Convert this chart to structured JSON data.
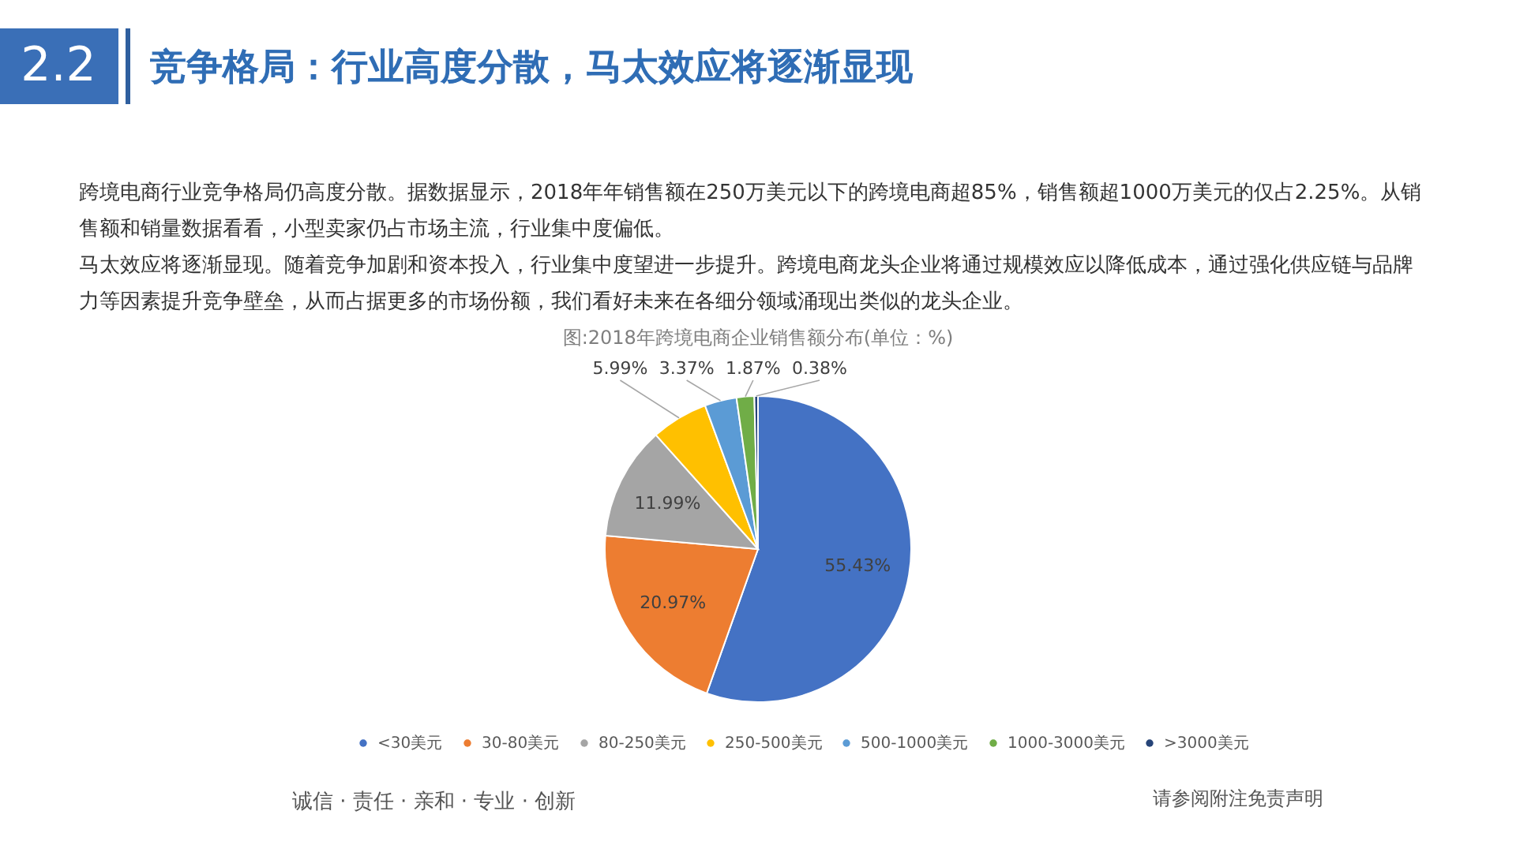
{
  "chart_data": {
    "type": "pie",
    "title": "图:2018年跨境电商企业销售额分布(单位：%)",
    "categories": [
      "<30美元",
      "30-80美元",
      "80-250美元",
      "250-500美元",
      "500-1000美元",
      "1000-3000美元",
      ">3000美元"
    ],
    "values": [
      55.43,
      20.97,
      11.99,
      5.99,
      3.37,
      1.87,
      0.38
    ],
    "colors": [
      "#4472c4",
      "#ed7d31",
      "#a5a5a5",
      "#ffc000",
      "#5b9bd5",
      "#70ad47",
      "#264478"
    ],
    "value_labels": [
      "55.43%",
      "20.97%",
      "11.99%",
      "5.99%",
      "3.37%",
      "1.87%",
      "0.38%"
    ],
    "legend": "bottom",
    "annotations": [
      "2.2",
      "竞争格局：行业高度分散，马太效应将逐渐显现",
      "跨境电商行业竞争格局仍高度分散。据数据显示，2018年年销售额在250万美元以下的跨境电商超85%，销售额超1000万美元的仅占2.25%。从销售额和销量数据看看，小型卖家仍占市场主流，行业集中度偏低。",
      "马太效应将逐渐显现。随着竞争加剧和资本投入，行业集中度望进一步提升。跨境电商龙头企业将通过规模效应以降低成本，通过强化供应链与品牌力等因素提升竞争壁垒，从而占据更多的市场份额，我们看好未来在各细分领域涌现出类似的龙头企业。",
      "诚信 · 责任 · 亲和 · 专业 · 创新",
      "请参阅附注免责声明"
    ]
  }
}
